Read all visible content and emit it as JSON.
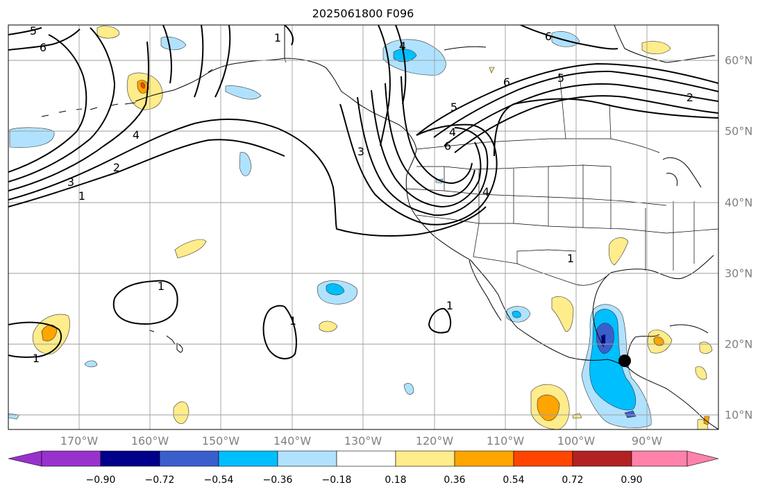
{
  "title": "2025061800 F096",
  "lon_labels": [
    "170°W",
    "160°W",
    "150°W",
    "140°W",
    "130°W",
    "120°W",
    "110°W",
    "100°W",
    "90°W"
  ],
  "lat_labels": [
    "60°N",
    "50°N",
    "40°N",
    "30°N",
    "20°N",
    "10°N"
  ],
  "colorbar": {
    "ticks": [
      "−0.90",
      "−0.72",
      "−0.54",
      "−0.36",
      "−0.18",
      "0.18",
      "0.36",
      "0.54",
      "0.72",
      "0.90"
    ],
    "colors": [
      "#9932cc",
      "#00008b",
      "#3a5fcd",
      "#00bfff",
      "#b0e2ff",
      "#ffffff",
      "#ffec8b",
      "#ffa500",
      "#ff4500",
      "#b22222",
      "#ff82ab"
    ]
  },
  "contour_labels": [
    {
      "text": "5"
    },
    {
      "text": "6"
    },
    {
      "text": "4"
    },
    {
      "text": "3"
    },
    {
      "text": "2"
    },
    {
      "text": "1"
    },
    {
      "text": "1"
    },
    {
      "text": "3"
    },
    {
      "text": "4"
    },
    {
      "text": "5"
    },
    {
      "text": "4"
    },
    {
      "text": "6"
    },
    {
      "text": "6"
    },
    {
      "text": "5"
    },
    {
      "text": "4"
    },
    {
      "text": "2"
    },
    {
      "text": "6"
    },
    {
      "text": "1"
    },
    {
      "text": "1"
    },
    {
      "text": "1"
    },
    {
      "text": "1"
    },
    {
      "text": "1"
    }
  ],
  "marker": {
    "color": "#000000"
  }
}
